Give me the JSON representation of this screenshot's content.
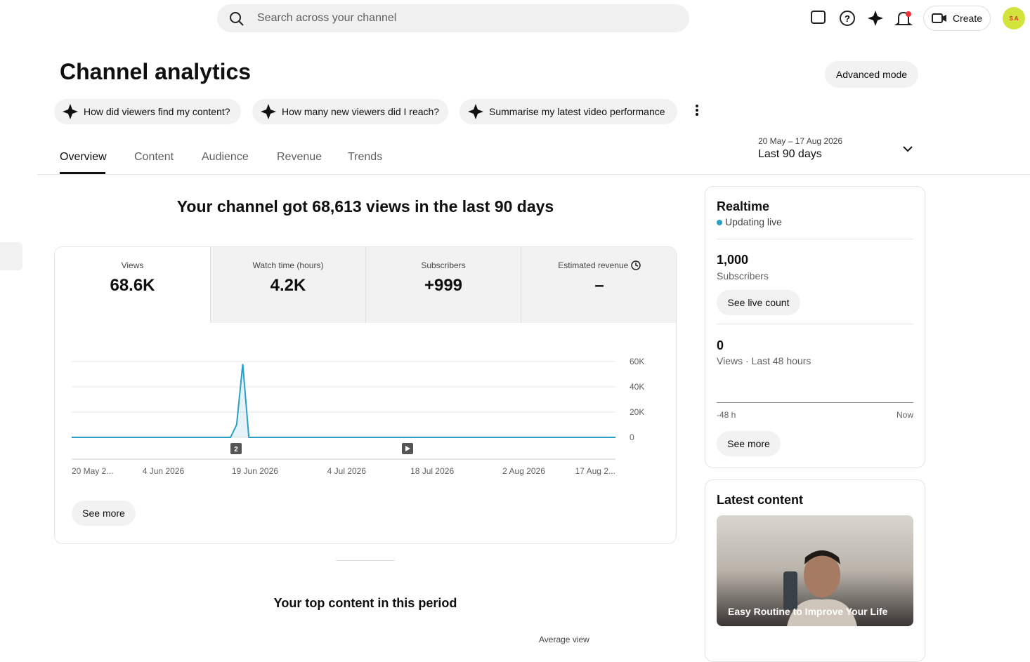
{
  "header": {
    "search_placeholder": "Search across your channel",
    "create": "Create",
    "avatar": "S A"
  },
  "page": {
    "title": "Channel analytics",
    "advanced_mode": "Advanced mode",
    "prompts": [
      "How did viewers find my content?",
      "How many new viewers did I reach?",
      "Summarise my latest video performance"
    ],
    "tabs": [
      "Overview",
      "Content",
      "Audience",
      "Revenue",
      "Trends"
    ],
    "date_range": {
      "dates": "20 May – 17 Aug 2026",
      "label": "Last 90 days"
    },
    "headline": "Your channel got 68,613 views in the last 90 days",
    "metrics": [
      {
        "label": "Views",
        "value": "68.6K"
      },
      {
        "label": "Watch time (hours)",
        "value": "4.2K"
      },
      {
        "label": "Subscribers",
        "value": "+999"
      },
      {
        "label": "Estimated revenue",
        "value": "–"
      }
    ],
    "see_more": "See more",
    "top_content": "Your top content in this period",
    "column_header": "Average view"
  },
  "chart_data": {
    "type": "line",
    "categories": [
      "20 May 2...",
      null,
      null,
      null,
      null,
      null,
      null,
      null,
      null,
      null,
      null,
      null,
      null,
      null,
      null,
      "4 Jun 2026",
      null,
      null,
      null,
      null,
      null,
      null,
      null,
      null,
      null,
      null,
      null,
      null,
      null,
      null,
      "19 Jun 2026",
      null,
      null,
      null,
      null,
      null,
      null,
      null,
      null,
      null,
      null,
      null,
      null,
      null,
      null,
      "4 Jul 2026",
      null,
      null,
      null,
      null,
      null,
      null,
      null,
      null,
      null,
      null,
      null,
      null,
      null,
      "18 Jul 2026",
      null,
      null,
      null,
      null,
      null,
      null,
      null,
      null,
      null,
      null,
      null,
      null,
      null,
      null,
      "2 Aug 2026",
      null,
      null,
      null,
      null,
      null,
      null,
      null,
      null,
      null,
      null,
      null,
      null,
      null,
      null,
      "17 Aug 2..."
    ],
    "series": [
      {
        "name": "Views",
        "color": "#2a9fc6",
        "values": [
          0,
          0,
          0,
          0,
          0,
          0,
          0,
          0,
          0,
          0,
          0,
          0,
          0,
          0,
          0,
          0,
          0,
          0,
          0,
          0,
          0,
          0,
          0,
          0,
          0,
          0,
          0,
          10000,
          58000,
          0,
          0,
          0,
          0,
          0,
          0,
          0,
          0,
          0,
          0,
          0,
          0,
          0,
          0,
          0,
          0,
          0,
          0,
          0,
          0,
          0,
          0,
          0,
          0,
          0,
          0,
          0,
          0,
          0,
          0,
          0,
          0,
          0,
          0,
          0,
          0,
          0,
          0,
          0,
          0,
          0,
          0,
          0,
          0,
          0,
          0,
          0,
          0,
          0,
          0,
          0,
          0,
          0,
          0,
          0,
          0,
          0,
          0,
          0,
          0,
          0
        ]
      }
    ],
    "ylim": [
      0,
      60000
    ],
    "yticks": [
      0,
      {
        "value": 20000,
        "label": "20K"
      },
      {
        "value": 40000,
        "label": "40K"
      },
      {
        "value": 60000,
        "label": "60K"
      }
    ],
    "grid": true,
    "annotation": "2"
  },
  "realtime": {
    "title": "Realtime",
    "status": "Updating live",
    "subscribers": "1,000",
    "subscribers_label": "Subscribers",
    "live_count": "See live count",
    "views": "0",
    "views_label": "Views · Last 48 hours",
    "start": "-48 h",
    "end": "Now",
    "see_more": "See more"
  },
  "latest": {
    "title": "Latest content",
    "video_title": "Easy Routine to Improve Your Life"
  }
}
